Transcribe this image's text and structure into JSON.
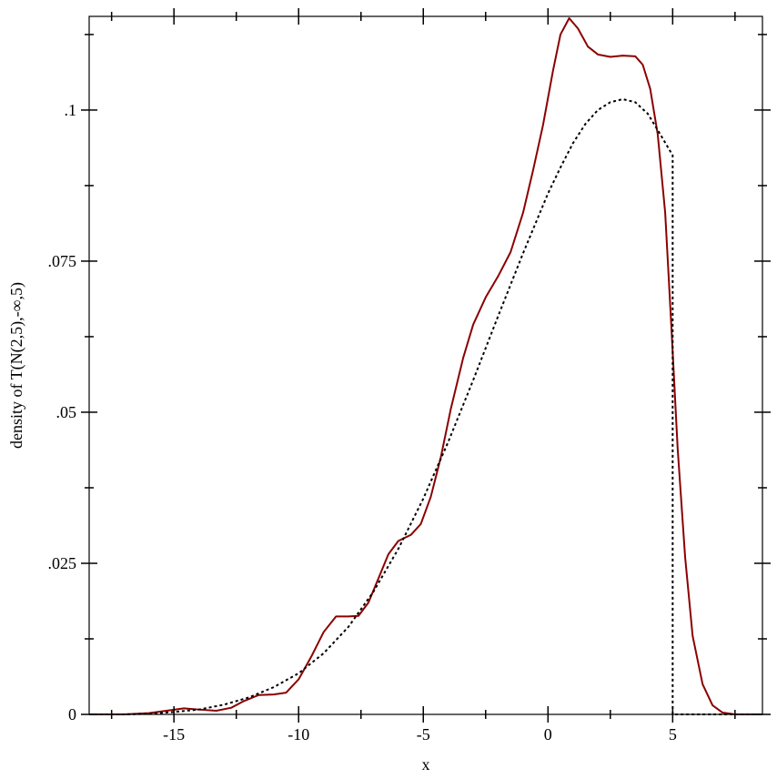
{
  "chart_data": {
    "type": "line",
    "title": "",
    "xlabel": "x",
    "ylabel": "density of T(N(2,5),-∞,5)",
    "xlim": [
      -18.4,
      8.6
    ],
    "ylim": [
      0,
      0.1155
    ],
    "grid": false,
    "x_ticks": [
      {
        "value": -15,
        "label": "-15"
      },
      {
        "value": -10,
        "label": "-10"
      },
      {
        "value": -5,
        "label": "-5"
      },
      {
        "value": 0,
        "label": "0"
      },
      {
        "value": 5,
        "label": "5"
      }
    ],
    "y_ticks": [
      {
        "value": 0,
        "label": "0"
      },
      {
        "value": 0.025,
        "label": ".025"
      },
      {
        "value": 0.05,
        "label": ".05"
      },
      {
        "value": 0.075,
        "label": ".075"
      },
      {
        "value": 0.1,
        "label": ".1"
      }
    ],
    "series": [
      {
        "style": "solid",
        "color": "#8b0000",
        "points": [
          [
            -18.4,
            0.0
          ],
          [
            -17.0,
            0.0
          ],
          [
            -16.0,
            0.0002
          ],
          [
            -15.3,
            0.0006
          ],
          [
            -14.6,
            0.001
          ],
          [
            -14.0,
            0.0008
          ],
          [
            -13.3,
            0.0006
          ],
          [
            -12.7,
            0.0011
          ],
          [
            -12.2,
            0.0022
          ],
          [
            -11.6,
            0.0032
          ],
          [
            -11.0,
            0.0033
          ],
          [
            -10.5,
            0.0036
          ],
          [
            -10.0,
            0.0058
          ],
          [
            -9.5,
            0.0095
          ],
          [
            -9.0,
            0.0136
          ],
          [
            -8.5,
            0.0162
          ],
          [
            -8.0,
            0.0162
          ],
          [
            -7.6,
            0.0163
          ],
          [
            -7.2,
            0.0185
          ],
          [
            -6.8,
            0.0225
          ],
          [
            -6.4,
            0.0265
          ],
          [
            -6.0,
            0.0287
          ],
          [
            -5.5,
            0.0297
          ],
          [
            -5.1,
            0.0315
          ],
          [
            -4.7,
            0.036
          ],
          [
            -4.3,
            0.0425
          ],
          [
            -3.9,
            0.0505
          ],
          [
            -3.4,
            0.059
          ],
          [
            -3.0,
            0.0645
          ],
          [
            -2.5,
            0.069
          ],
          [
            -2.0,
            0.0725
          ],
          [
            -1.5,
            0.0765
          ],
          [
            -1.0,
            0.083
          ],
          [
            -0.6,
            0.09
          ],
          [
            -0.2,
            0.0975
          ],
          [
            0.2,
            0.1065
          ],
          [
            0.5,
            0.1125
          ],
          [
            0.85,
            0.1152
          ],
          [
            1.2,
            0.1135
          ],
          [
            1.6,
            0.1105
          ],
          [
            2.0,
            0.1092
          ],
          [
            2.5,
            0.1088
          ],
          [
            3.0,
            0.109
          ],
          [
            3.5,
            0.1089
          ],
          [
            3.8,
            0.1075
          ],
          [
            4.1,
            0.1035
          ],
          [
            4.4,
            0.096
          ],
          [
            4.7,
            0.083
          ],
          [
            4.95,
            0.064
          ],
          [
            5.2,
            0.044
          ],
          [
            5.5,
            0.026
          ],
          [
            5.8,
            0.013
          ],
          [
            6.2,
            0.005
          ],
          [
            6.6,
            0.0015
          ],
          [
            7.0,
            0.0003
          ],
          [
            7.5,
            0.0
          ],
          [
            8.6,
            0.0
          ]
        ]
      },
      {
        "style": "dotted",
        "color": "#000000",
        "points": [
          [
            -18.4,
            0.0
          ],
          [
            -17.0,
            0.0
          ],
          [
            -16.0,
            0.0001
          ],
          [
            -15.0,
            0.0004
          ],
          [
            -14.0,
            0.0008
          ],
          [
            -13.0,
            0.0016
          ],
          [
            -12.0,
            0.0028
          ],
          [
            -11.0,
            0.0045
          ],
          [
            -10.0,
            0.0068
          ],
          [
            -9.0,
            0.0101
          ],
          [
            -8.0,
            0.0145
          ],
          [
            -7.0,
            0.0203
          ],
          [
            -6.0,
            0.0274
          ],
          [
            -5.0,
            0.0357
          ],
          [
            -4.0,
            0.0451
          ],
          [
            -3.0,
            0.0553
          ],
          [
            -2.0,
            0.0659
          ],
          [
            -1.0,
            0.0763
          ],
          [
            0.0,
            0.0862
          ],
          [
            0.5,
            0.0905
          ],
          [
            1.0,
            0.0945
          ],
          [
            1.5,
            0.0977
          ],
          [
            2.0,
            0.1
          ],
          [
            2.5,
            0.1013
          ],
          [
            3.0,
            0.1018
          ],
          [
            3.5,
            0.1013
          ],
          [
            4.0,
            0.0994
          ],
          [
            4.5,
            0.096
          ],
          [
            5.0,
            0.0925
          ],
          [
            5.0,
            0.0
          ],
          [
            8.6,
            0.0
          ]
        ]
      }
    ]
  }
}
